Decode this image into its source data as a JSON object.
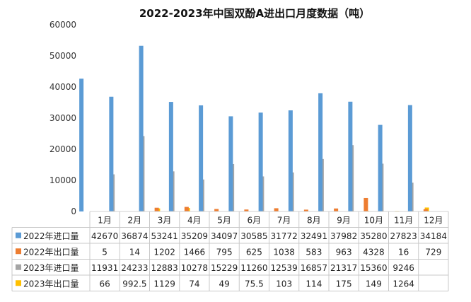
{
  "chart_data": {
    "type": "bar",
    "title": "2022-2023年中国双酚A进出口月度数据（吨）",
    "xlabel": "",
    "ylabel": "",
    "ylim": [
      0,
      60000
    ],
    "yticks": [
      "0",
      "10000",
      "20000",
      "30000",
      "40000",
      "50000",
      "60000"
    ],
    "grid": false,
    "legend": "bottom-table",
    "categories": [
      "1月",
      "2月",
      "3月",
      "4月",
      "5月",
      "6月",
      "7月",
      "8月",
      "9月",
      "10月",
      "11月",
      "12月"
    ],
    "series": [
      {
        "name": "2022年进口量",
        "color": "#5B9BD5",
        "values": [
          42670,
          36874,
          53241,
          35209,
          34097,
          30585,
          31772,
          32491,
          37982,
          35280,
          27823,
          34184
        ],
        "labels": [
          "42670",
          "36874",
          "53241",
          "35209",
          "34097",
          "30585",
          "31772",
          "32491",
          "37982",
          "35280",
          "27823",
          "34184"
        ]
      },
      {
        "name": "2022年出口量",
        "color": "#ED7D31",
        "values": [
          5,
          14,
          1202,
          1466,
          795,
          625,
          1038,
          583,
          963,
          4328,
          16,
          729
        ],
        "labels": [
          "5",
          "14",
          "1202",
          "1466",
          "795",
          "625",
          "1038",
          "583",
          "963",
          "4328",
          "16",
          "729"
        ]
      },
      {
        "name": "2023年进口量",
        "color": "#A5A5A5",
        "values": [
          11931,
          24233,
          12883,
          10278,
          15229,
          11260,
          12539,
          16857,
          21317,
          15360,
          9246,
          null
        ],
        "labels": [
          "11931",
          "24233",
          "12883",
          "10278",
          "15229",
          "11260",
          "12539",
          "16857",
          "21317",
          "15360",
          "9246",
          ""
        ]
      },
      {
        "name": "2023年出口量",
        "color": "#FFC000",
        "values": [
          66,
          992.5,
          1129,
          74,
          49,
          75.5,
          103,
          114,
          175,
          149,
          1264,
          null
        ],
        "labels": [
          "66",
          "992.5",
          "1129",
          "74",
          "49",
          "75.5",
          "103",
          "114",
          "175",
          "149",
          "1264",
          ""
        ]
      }
    ]
  }
}
